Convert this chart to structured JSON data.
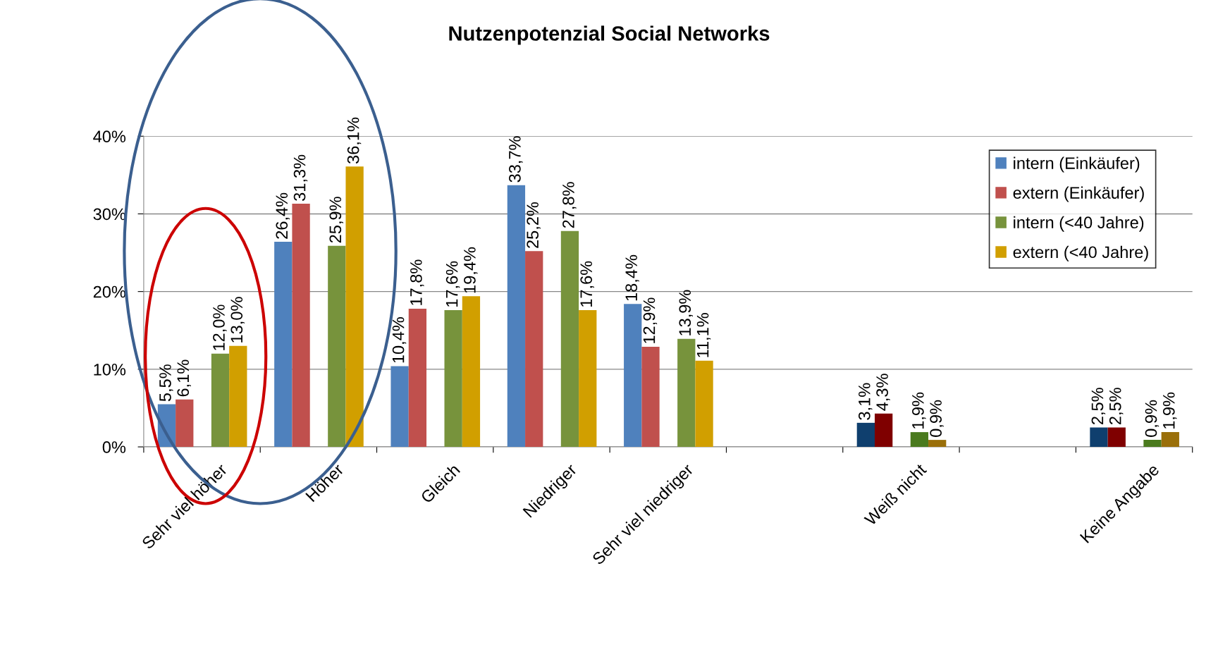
{
  "chart_data": {
    "type": "bar",
    "title": "Nutzenpotenzial Social Networks",
    "categories": [
      "Sehr viel höher",
      "Höher",
      "Gleich",
      "Niedriger",
      "Sehr viel niedriger",
      null,
      "Weiß nicht",
      null,
      "Keine Angabe"
    ],
    "series": [
      {
        "name": "intern (Einkäufer)",
        "color": "#4f81bd",
        "colors": [
          "#4f81bd",
          "#4f81bd",
          "#4f81bd",
          "#4f81bd",
          "#4f81bd",
          "#4f81bd",
          "#0f3f6e",
          "#4f81bd",
          "#0f3f6e"
        ],
        "values": [
          5.5,
          26.4,
          10.4,
          33.7,
          18.4,
          null,
          3.1,
          null,
          2.5
        ],
        "value_labels": [
          "5,5%",
          "26,4%",
          "10,4%",
          "33,7%",
          "18,4%",
          null,
          "3,1%",
          null,
          "2,5%"
        ]
      },
      {
        "name": "extern (Einkäufer)",
        "color": "#c0504d",
        "colors": [
          "#c0504d",
          "#c0504d",
          "#c0504d",
          "#c0504d",
          "#c0504d",
          "#c0504d",
          "#7f0000",
          "#c0504d",
          "#7f0000"
        ],
        "values": [
          6.1,
          31.3,
          17.8,
          25.2,
          12.9,
          null,
          4.3,
          null,
          2.5
        ],
        "value_labels": [
          "6,1%",
          "31,3%",
          "17,8%",
          "25,2%",
          "12,9%",
          null,
          "4,3%",
          null,
          "2,5%"
        ]
      },
      {
        "name": "intern (<40 Jahre)",
        "color": "#77933c",
        "colors": [
          "#77933c",
          "#77933c",
          "#77933c",
          "#77933c",
          "#77933c",
          "#77933c",
          "#4a7a1e",
          "#77933c",
          "#4a7a1e"
        ],
        "values": [
          12.0,
          25.9,
          17.6,
          27.8,
          13.9,
          null,
          1.9,
          null,
          0.9
        ],
        "value_labels": [
          "12,0%",
          "25,9%",
          "17,6%",
          "27,8%",
          "13,9%",
          null,
          "1,9%",
          null,
          "0,9%"
        ]
      },
      {
        "name": "extern (<40 Jahre)",
        "color": "#d19f00",
        "colors": [
          "#d19f00",
          "#d19f00",
          "#d19f00",
          "#d19f00",
          "#d19f00",
          "#d19f00",
          "#9a6f0a",
          "#d19f00",
          "#9a6f0a"
        ],
        "values": [
          13.0,
          36.1,
          19.4,
          17.6,
          11.1,
          null,
          0.9,
          null,
          1.9
        ],
        "value_labels": [
          "13,0%",
          "36,1%",
          "19,4%",
          "17,6%",
          "11,1%",
          null,
          "0,9%",
          null,
          "1,9%"
        ]
      }
    ],
    "ylim": [
      0,
      40
    ],
    "yticks": [
      {
        "value": 0,
        "label": "0%"
      },
      {
        "value": 10,
        "label": "10%"
      },
      {
        "value": 20,
        "label": "20%"
      },
      {
        "value": 30,
        "label": "30%"
      },
      {
        "value": 40,
        "label": "40%"
      }
    ],
    "grid": "y",
    "legend": "top right"
  }
}
